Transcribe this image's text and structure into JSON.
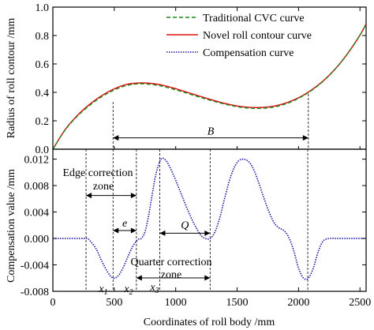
{
  "chart_data": [
    {
      "type": "line",
      "ylabel": "Radius of roll contour /mm",
      "xlim": [
        0,
        2550
      ],
      "ylim": [
        0,
        1.0
      ],
      "yticks": [
        "0.0",
        "0.2",
        "0.4",
        "0.6",
        "0.8",
        "1.0"
      ],
      "legend": {
        "placement": "top-center",
        "entries": [
          "Traditional CVC curve",
          "Novel roll contour curve",
          "Compensation curve"
        ]
      },
      "series": [
        {
          "name": "Traditional CVC curve",
          "color": "#1a8a1a",
          "style": "dashed",
          "x": [
            0,
            100,
            200,
            300,
            400,
            500,
            600,
            700,
            800,
            900,
            1000,
            1100,
            1200,
            1300,
            1400,
            1500,
            1600,
            1700,
            1800,
            1900,
            2000,
            2100,
            2200,
            2300,
            2400,
            2500,
            2550
          ],
          "y": [
            0.0,
            0.135,
            0.233,
            0.309,
            0.371,
            0.417,
            0.448,
            0.46,
            0.456,
            0.441,
            0.418,
            0.392,
            0.365,
            0.34,
            0.317,
            0.299,
            0.289,
            0.288,
            0.297,
            0.32,
            0.358,
            0.41,
            0.478,
            0.565,
            0.673,
            0.802,
            0.882
          ]
        },
        {
          "name": "Novel roll contour curve",
          "color": "#e01010",
          "style": "solid",
          "x": [
            0,
            100,
            200,
            300,
            400,
            500,
            600,
            700,
            800,
            900,
            1000,
            1100,
            1200,
            1300,
            1400,
            1500,
            1600,
            1700,
            1800,
            1900,
            2000,
            2100,
            2200,
            2300,
            2400,
            2500,
            2550
          ],
          "y": [
            0.0,
            0.138,
            0.238,
            0.316,
            0.378,
            0.425,
            0.456,
            0.466,
            0.463,
            0.449,
            0.426,
            0.399,
            0.372,
            0.346,
            0.322,
            0.304,
            0.294,
            0.294,
            0.303,
            0.326,
            0.362,
            0.413,
            0.48,
            0.566,
            0.674,
            0.803,
            0.882
          ]
        }
      ],
      "annotations": [
        {
          "text": "B",
          "x_from": 490,
          "x_to": 2080,
          "y": 0.08
        }
      ]
    },
    {
      "type": "line",
      "ylabel": "Compensation value /mm",
      "xlabel": "Coordinates of roll body /mm",
      "xlim": [
        0,
        2550
      ],
      "ylim": [
        -0.008,
        0.0135
      ],
      "yticks": [
        "-0.008",
        "-0.004",
        "0.000",
        "0.004",
        "0.008",
        "0.012"
      ],
      "xticks": [
        "0",
        "500",
        "1000",
        "1500",
        "2000",
        "2500"
      ],
      "series": [
        {
          "name": "Compensation curve",
          "color": "#1a1aa0",
          "style": "dotted",
          "x": [
            0,
            50,
            100,
            150,
            200,
            250,
            280,
            300,
            350,
            400,
            450,
            490,
            530,
            570,
            610,
            650,
            690,
            720,
            750,
            780,
            810,
            840,
            880,
            920,
            960,
            1000,
            1050,
            1100,
            1150,
            1200,
            1240,
            1280,
            1320,
            1360,
            1400,
            1450,
            1500,
            1550,
            1600,
            1640,
            1680,
            1720,
            1760,
            1800,
            1840,
            1880,
            1920,
            1960,
            2000,
            2040,
            2080,
            2120,
            2160,
            2200,
            2250,
            2300,
            2350,
            2400,
            2450,
            2500,
            2550
          ],
          "y": [
            0.0,
            0.0,
            0.0,
            0.0,
            0.0,
            0.0,
            0.0,
            -0.0003,
            -0.0015,
            -0.0035,
            -0.0052,
            -0.006,
            -0.0057,
            -0.0045,
            -0.0028,
            -0.0012,
            -0.0002,
            0.0,
            0.001,
            0.0035,
            0.0068,
            0.0098,
            0.012,
            0.0118,
            0.0105,
            0.0088,
            0.0065,
            0.0042,
            0.0022,
            0.0006,
            0.0,
            0.0,
            0.001,
            0.0032,
            0.0062,
            0.0095,
            0.0115,
            0.012,
            0.0115,
            0.0102,
            0.0082,
            0.006,
            0.004,
            0.0024,
            0.0016,
            0.0012,
            0.0002,
            -0.0018,
            -0.0045,
            -0.006,
            -0.006,
            -0.0045,
            -0.002,
            -0.0004,
            0.0,
            0.0,
            0.0,
            0.0,
            0.0,
            0.0,
            0.0
          ]
        }
      ],
      "vlines_x": [
        270,
        490,
        680,
        870,
        1280,
        2075
      ],
      "annotations": [
        {
          "text": "Edge correction\nzone",
          "x_from": 270,
          "x_to": 680,
          "y": 0.0065
        },
        {
          "text": "e",
          "x_from": 490,
          "x_to": 680,
          "y": 0.0012,
          "italic": true
        },
        {
          "text": "Q",
          "x_from": 870,
          "x_to": 1280,
          "y": 0.0008,
          "italic": true
        },
        {
          "text": "Quarter correction\nzone",
          "x": 1080,
          "y": -0.0038
        },
        {
          "text": "x1",
          "x": 400,
          "y": -0.0065,
          "italic": true
        },
        {
          "text": "x2",
          "x": 640,
          "y": -0.0065,
          "italic": true
        },
        {
          "text": "x3",
          "x_from": 680,
          "x_to": 1280,
          "y": -0.0055,
          "italic": true
        }
      ]
    }
  ]
}
